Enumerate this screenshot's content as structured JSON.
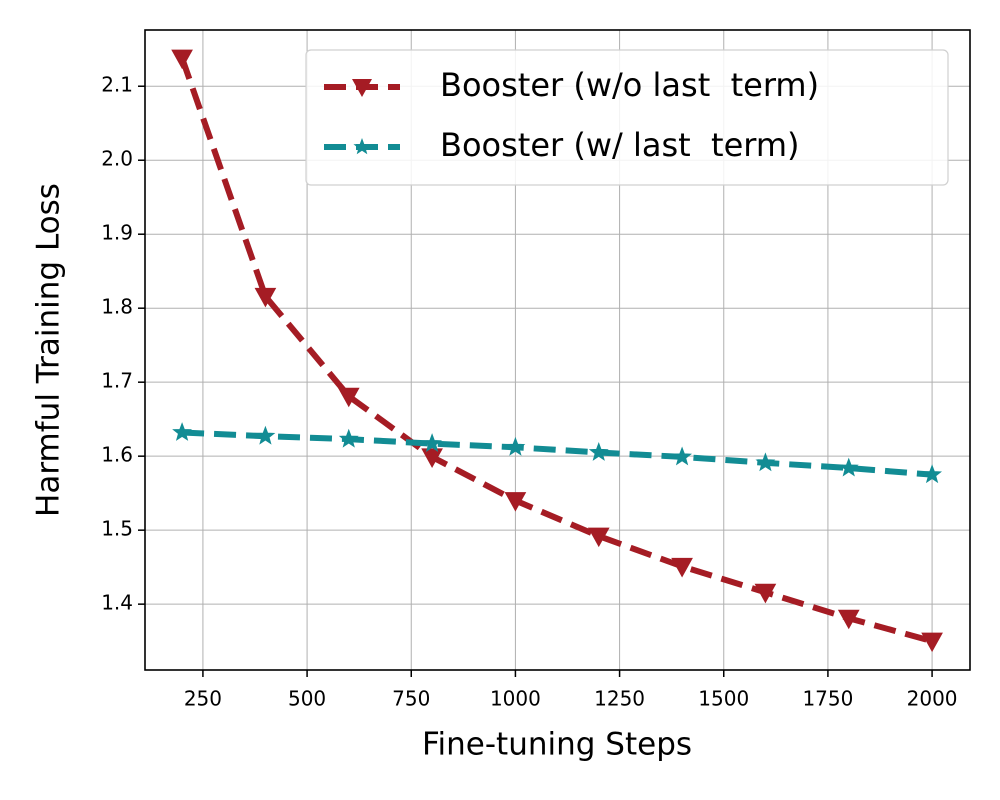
{
  "chart_data": {
    "type": "line",
    "x_label": "Fine-tuning Steps",
    "y_label": "Harmful Training Loss",
    "x": [
      200,
      400,
      600,
      800,
      1000,
      1200,
      1400,
      1600,
      1800,
      2000
    ],
    "series": [
      {
        "name": "Booster (w/o last  term)",
        "color": "#a51c24",
        "marker": "triangle-down",
        "values": [
          2.138,
          1.816,
          1.681,
          1.599,
          1.54,
          1.492,
          1.451,
          1.416,
          1.381,
          1.35
        ]
      },
      {
        "name": "Booster (w/ last  term)",
        "color": "#128c94",
        "marker": "star",
        "values": [
          1.632,
          1.627,
          1.623,
          1.617,
          1.612,
          1.605,
          1.599,
          1.591,
          1.584,
          1.575
        ]
      }
    ],
    "xlim": [
      111,
      2091
    ],
    "ylim": [
      1.311,
      2.176
    ],
    "xticks": [
      250,
      500,
      750,
      1000,
      1250,
      1500,
      1750,
      2000
    ],
    "yticks": [
      1.4,
      1.5,
      1.6,
      1.7,
      1.8,
      1.9,
      {
        "value": 2,
        "label": "2.0"
      },
      2.1
    ],
    "grid": true,
    "legend": "upper right"
  }
}
